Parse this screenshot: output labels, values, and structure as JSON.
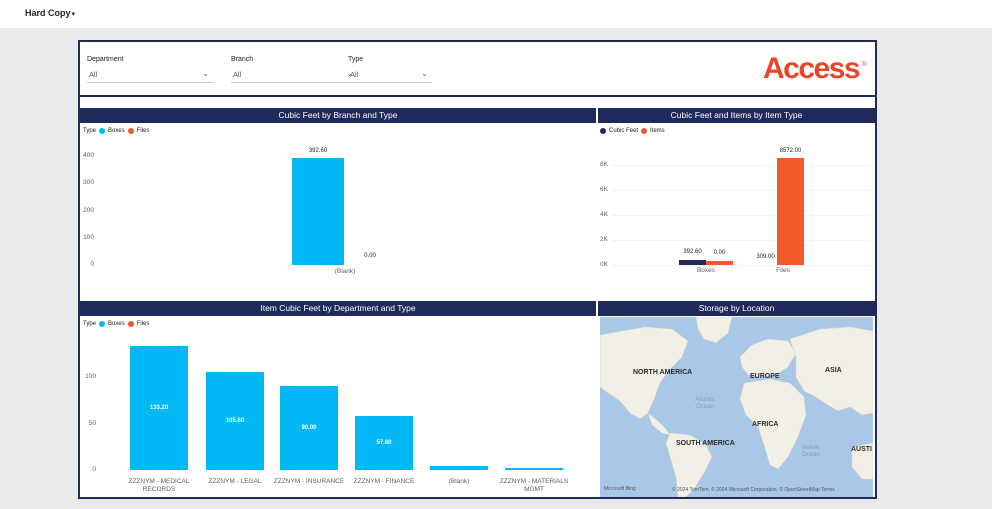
{
  "topbar": {
    "title": "Hard Copy",
    "caret": "▾"
  },
  "filters": [
    {
      "label": "Department",
      "value": "All"
    },
    {
      "label": "Branch",
      "value": "All"
    },
    {
      "label": "Type",
      "value": "All"
    }
  ],
  "logo": {
    "text": "Access",
    "registered": "®",
    "color": "#e8452c",
    "a_color": "#1f2a5a"
  },
  "colors": {
    "navy": "#1f2a5a",
    "boxes": "#01b8f4",
    "files": "#f1592a",
    "cubic_feet": "#1f2a5a",
    "items": "#f1592a"
  },
  "panels": {
    "branch_type": {
      "title": "Cubic Feet by Branch and Type",
      "legend_title": "Type",
      "legend": [
        "Boxes",
        "Files"
      ]
    },
    "item_type": {
      "title": "Cubic Feet and Items by Item Type",
      "legend": [
        "Cubic Feet",
        "Items"
      ]
    },
    "dept_type": {
      "title": "Item Cubic Feet by Department and Type",
      "legend_title": "Type",
      "legend": [
        "Boxes",
        "Files"
      ]
    },
    "storage": {
      "title": "Storage by Location"
    }
  },
  "map": {
    "labels": {
      "north_america": "NORTH AMERICA",
      "europe": "EUROPE",
      "asia": "ASIA",
      "africa": "AFRICA",
      "south_america": "SOUTH AMERICA",
      "australia": "AUSTI",
      "atlantic": "Atlantic",
      "atlantic2": "Ocean",
      "indian": "Indian",
      "indian2": "Ocean"
    },
    "bing": "Microsoft Bing",
    "attribution": "© 2024 TomTom, © 2024 Microsoft Corporation, © OpenStreetMap  Terms"
  },
  "chart_data": [
    {
      "type": "bar",
      "title": "Cubic Feet by Branch and Type",
      "categories": [
        "(Blank)"
      ],
      "series": [
        {
          "name": "Boxes",
          "values": [
            392.6
          ]
        },
        {
          "name": "Files",
          "values": [
            0
          ]
        }
      ],
      "data_labels": [
        "392.60",
        "0.00"
      ],
      "yticks": [
        "400",
        "300",
        "200",
        "100",
        "0"
      ],
      "ylim": [
        0,
        400
      ],
      "legend": "top-left",
      "grid": false
    },
    {
      "type": "bar",
      "title": "Cubic Feet and Items by Item Type",
      "categories": [
        "Boxes",
        "Files"
      ],
      "series": [
        {
          "name": "Cubic Feet",
          "values": [
            392.6,
            0
          ]
        },
        {
          "name": "Items",
          "values": [
            309,
            8572
          ]
        }
      ],
      "data_labels": [
        [
          "392.60",
          "0.00"
        ],
        [
          "309.00",
          "8572.00"
        ]
      ],
      "yticks": [
        "8K",
        "6K",
        "4K",
        "2K",
        "0K"
      ],
      "ylim": [
        0,
        8000
      ],
      "legend": "top-left",
      "grid": true
    },
    {
      "type": "bar",
      "title": "Item Cubic Feet by Department and Type",
      "categories": [
        "ZZZNYM - MEDICAL RECORDS",
        "ZZZNYM - LEGAL",
        "ZZZNYM - INSURANCE",
        "ZZZNYM - FINANCE",
        "(Blank)",
        "ZZZNYM - MATERIALS MGMT"
      ],
      "category_lines": [
        [
          "ZZZNYM - MEDICAL",
          "RECORDS"
        ],
        [
          "ZZZNYM - LEGAL"
        ],
        [
          "ZZZNYM - INSURANCE"
        ],
        [
          "ZZZNYM - FINANCE"
        ],
        [
          "(Blank)"
        ],
        [
          "ZZZNYM - MATERIALS",
          "MGMT"
        ]
      ],
      "series": [
        {
          "name": "Boxes",
          "values": [
            133.2,
            105.6,
            90,
            57.6,
            4.5,
            1.7
          ]
        }
      ],
      "data_labels": [
        "133.20",
        "105.60",
        "90.00",
        "57.60",
        "",
        ""
      ],
      "yticks": [
        "100",
        "50",
        "0"
      ],
      "ylim": [
        0,
        150
      ],
      "legend": "top-left",
      "grid": false
    }
  ]
}
